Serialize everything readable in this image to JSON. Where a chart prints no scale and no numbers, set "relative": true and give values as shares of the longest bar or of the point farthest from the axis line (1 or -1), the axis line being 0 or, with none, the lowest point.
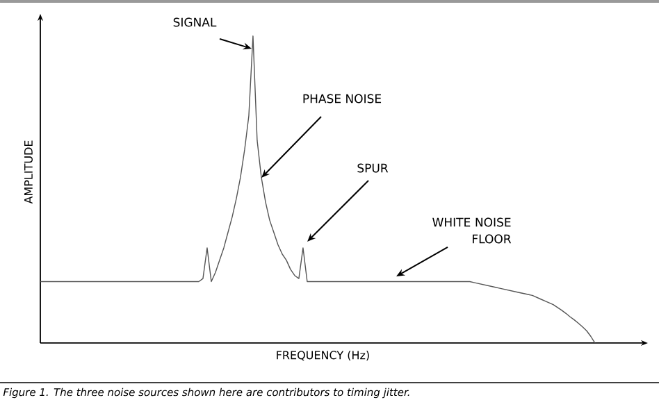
{
  "chart_data": {
    "type": "line",
    "relative": true,
    "xlabel": "FREQUENCY (Hz)",
    "ylabel": "AMPLITUDE",
    "categories": [
      null,
      null,
      null,
      null,
      null,
      null,
      null,
      null,
      null,
      null,
      null,
      null,
      null,
      null,
      null,
      null,
      null,
      null,
      null,
      null,
      null,
      null,
      null,
      null,
      null,
      null,
      null,
      null,
      null,
      null,
      null,
      null,
      null,
      null,
      null,
      null,
      null,
      null,
      null,
      null,
      null,
      null,
      null,
      null,
      null,
      null,
      null,
      null,
      null,
      null,
      null,
      null,
      null,
      null,
      null,
      null,
      null,
      null,
      null,
      null,
      null,
      null,
      null,
      null,
      null,
      null,
      null,
      null,
      null,
      null,
      null,
      null,
      null,
      null,
      null,
      null,
      null,
      null,
      null,
      null,
      null,
      null,
      null,
      null,
      null,
      null,
      null,
      null,
      null,
      null,
      null,
      null,
      null,
      null,
      null,
      null,
      null,
      null,
      null,
      null,
      null,
      null,
      null,
      null,
      null,
      null,
      null,
      null,
      null,
      null,
      null,
      null,
      null,
      null,
      null,
      null,
      null,
      null,
      null,
      null,
      null,
      null,
      null,
      null,
      null,
      null,
      null,
      null,
      null,
      null,
      null,
      null,
      null,
      null
    ],
    "series": [
      {
        "color": "#555555",
        "values": [
          0.2,
          0.2,
          0.2,
          0.2,
          0.2,
          0.2,
          0.2,
          0.2,
          0.2,
          0.2,
          0.2,
          0.2,
          0.2,
          0.2,
          0.2,
          0.2,
          0.2,
          0.2,
          0.2,
          0.2,
          0.2,
          0.2,
          0.2,
          0.2,
          0.2,
          0.2,
          0.2,
          0.2,
          0.2,
          0.2,
          0.2,
          0.2,
          0.2,
          0.2,
          0.2,
          0.2,
          0.2,
          0.2,
          0.2,
          0.21,
          0.31,
          0.2,
          0.23,
          0.27,
          0.31,
          0.36,
          0.41,
          0.47,
          0.54,
          0.63,
          0.74,
          1.0,
          0.66,
          0.54,
          0.46,
          0.4,
          0.36,
          0.32,
          0.29,
          0.27,
          0.24,
          0.22,
          0.21,
          0.31,
          0.2,
          0.2,
          0.2,
          0.2,
          0.2,
          0.2,
          0.2,
          0.2,
          0.2,
          0.2,
          0.2,
          0.2,
          0.2,
          0.2,
          0.2,
          0.2,
          0.2,
          0.2,
          0.2,
          0.2,
          0.2,
          0.2,
          0.2,
          0.2,
          0.2,
          0.2,
          0.2,
          0.2,
          0.2,
          0.2,
          0.2,
          0.2,
          0.2,
          0.2,
          0.2,
          0.2,
          0.2,
          0.2,
          0.2,
          0.2,
          0.197,
          0.194,
          0.191,
          0.188,
          0.185,
          0.182,
          0.179,
          0.176,
          0.173,
          0.17,
          0.167,
          0.164,
          0.161,
          0.158,
          0.155,
          0.149,
          0.143,
          0.137,
          0.131,
          0.125,
          0.116,
          0.107,
          0.097,
          0.086,
          0.076,
          0.065,
          0.053,
          0.04,
          0.022,
          0
        ]
      }
    ],
    "annotations": [
      "SIGNAL",
      "PHASE NOISE",
      "SPUR",
      "WHITE NOISE FLOOR",
      "Figure 1. The three noise sources shown here are contributors to timing jitter."
    ]
  }
}
